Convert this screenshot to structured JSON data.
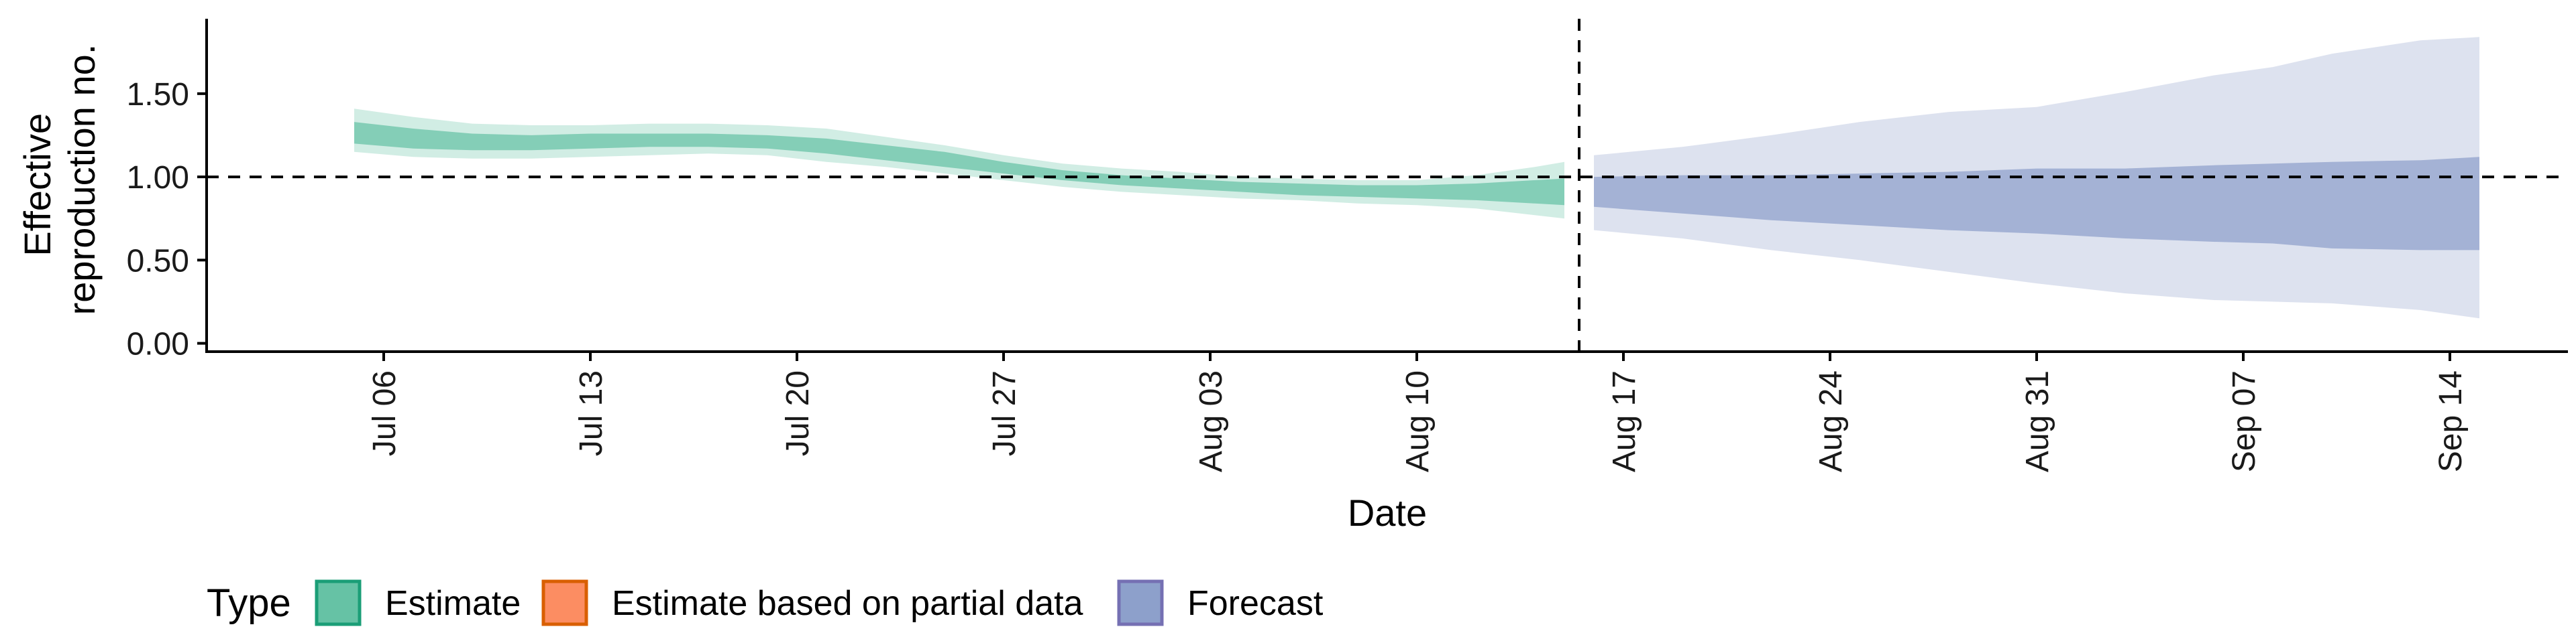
{
  "chart_data": {
    "type": "area",
    "xlabel": "Date",
    "ylabel_lines": [
      "Effective",
      "reproduction no."
    ],
    "ylim": [
      -0.05,
      1.95
    ],
    "xlim": [
      "2020-06-30",
      "2020-09-18"
    ],
    "y_ticks": [
      0.0,
      0.5,
      1.0,
      1.5
    ],
    "y_tick_labels": [
      "0.00",
      "0.50",
      "1.00",
      "1.50"
    ],
    "x_ticks": [
      "2020-07-06",
      "2020-07-13",
      "2020-07-20",
      "2020-07-27",
      "2020-08-03",
      "2020-08-10",
      "2020-08-17",
      "2020-08-24",
      "2020-08-31",
      "2020-09-07",
      "2020-09-14"
    ],
    "x_tick_labels": [
      "Jul 06",
      "Jul 13",
      "Jul 20",
      "Jul 27",
      "Aug 03",
      "Aug 10",
      "Aug 17",
      "Aug 24",
      "Aug 31",
      "Sep 07",
      "Sep 14"
    ],
    "reference_hline": 1.0,
    "reference_vline": "2020-08-15T12:00",
    "grid": false,
    "legend": {
      "title": "Type",
      "position": "bottom-left",
      "entries": [
        {
          "label": "Estimate",
          "fill": "#66c2a5",
          "stroke": "#1b9e77"
        },
        {
          "label": "Estimate based on partial data",
          "fill": "#fc8d62",
          "stroke": "#d95f02"
        },
        {
          "label": "Forecast",
          "fill": "#8da0cb",
          "stroke": "#7570b3"
        }
      ]
    },
    "series": [
      {
        "name": "Estimate",
        "color": "#66c2a5",
        "points": [
          {
            "date": "2020-07-05",
            "outer_lo": 1.15,
            "outer_hi": 1.41,
            "inner_lo": 1.2,
            "inner_hi": 1.33
          },
          {
            "date": "2020-07-07",
            "outer_lo": 1.12,
            "outer_hi": 1.36,
            "inner_lo": 1.17,
            "inner_hi": 1.29
          },
          {
            "date": "2020-07-09",
            "outer_lo": 1.11,
            "outer_hi": 1.32,
            "inner_lo": 1.16,
            "inner_hi": 1.26
          },
          {
            "date": "2020-07-11",
            "outer_lo": 1.11,
            "outer_hi": 1.31,
            "inner_lo": 1.16,
            "inner_hi": 1.25
          },
          {
            "date": "2020-07-13",
            "outer_lo": 1.12,
            "outer_hi": 1.31,
            "inner_lo": 1.17,
            "inner_hi": 1.26
          },
          {
            "date": "2020-07-15",
            "outer_lo": 1.13,
            "outer_hi": 1.32,
            "inner_lo": 1.18,
            "inner_hi": 1.26
          },
          {
            "date": "2020-07-17",
            "outer_lo": 1.14,
            "outer_hi": 1.32,
            "inner_lo": 1.18,
            "inner_hi": 1.26
          },
          {
            "date": "2020-07-19",
            "outer_lo": 1.13,
            "outer_hi": 1.31,
            "inner_lo": 1.17,
            "inner_hi": 1.25
          },
          {
            "date": "2020-07-21",
            "outer_lo": 1.09,
            "outer_hi": 1.29,
            "inner_lo": 1.14,
            "inner_hi": 1.23
          },
          {
            "date": "2020-07-23",
            "outer_lo": 1.06,
            "outer_hi": 1.24,
            "inner_lo": 1.1,
            "inner_hi": 1.19
          },
          {
            "date": "2020-07-25",
            "outer_lo": 1.02,
            "outer_hi": 1.19,
            "inner_lo": 1.06,
            "inner_hi": 1.15
          },
          {
            "date": "2020-07-27",
            "outer_lo": 0.98,
            "outer_hi": 1.13,
            "inner_lo": 1.02,
            "inner_hi": 1.09
          },
          {
            "date": "2020-07-29",
            "outer_lo": 0.94,
            "outer_hi": 1.08,
            "inner_lo": 0.98,
            "inner_hi": 1.04
          },
          {
            "date": "2020-07-31",
            "outer_lo": 0.91,
            "outer_hi": 1.05,
            "inner_lo": 0.95,
            "inner_hi": 1.01
          },
          {
            "date": "2020-08-02",
            "outer_lo": 0.89,
            "outer_hi": 1.03,
            "inner_lo": 0.93,
            "inner_hi": 0.99
          },
          {
            "date": "2020-08-04",
            "outer_lo": 0.87,
            "outer_hi": 1.0,
            "inner_lo": 0.91,
            "inner_hi": 0.97
          },
          {
            "date": "2020-08-06",
            "outer_lo": 0.86,
            "outer_hi": 0.99,
            "inner_lo": 0.89,
            "inner_hi": 0.96
          },
          {
            "date": "2020-08-08",
            "outer_lo": 0.84,
            "outer_hi": 0.98,
            "inner_lo": 0.88,
            "inner_hi": 0.95
          },
          {
            "date": "2020-08-10",
            "outer_lo": 0.83,
            "outer_hi": 0.98,
            "inner_lo": 0.87,
            "inner_hi": 0.95
          },
          {
            "date": "2020-08-12",
            "outer_lo": 0.81,
            "outer_hi": 1.01,
            "inner_lo": 0.86,
            "inner_hi": 0.96
          },
          {
            "date": "2020-08-14",
            "outer_lo": 0.77,
            "outer_hi": 1.06,
            "inner_lo": 0.84,
            "inner_hi": 0.98
          },
          {
            "date": "2020-08-15",
            "outer_lo": 0.75,
            "outer_hi": 1.09,
            "inner_lo": 0.83,
            "inner_hi": 0.99
          }
        ]
      },
      {
        "name": "Forecast",
        "color": "#8da0cb",
        "points": [
          {
            "date": "2020-08-16",
            "outer_lo": 0.68,
            "outer_hi": 1.13,
            "inner_lo": 0.82,
            "inner_hi": 1.0
          },
          {
            "date": "2020-08-19",
            "outer_lo": 0.63,
            "outer_hi": 1.18,
            "inner_lo": 0.78,
            "inner_hi": 1.01
          },
          {
            "date": "2020-08-22",
            "outer_lo": 0.56,
            "outer_hi": 1.25,
            "inner_lo": 0.74,
            "inner_hi": 1.01
          },
          {
            "date": "2020-08-25",
            "outer_lo": 0.5,
            "outer_hi": 1.33,
            "inner_lo": 0.71,
            "inner_hi": 1.02
          },
          {
            "date": "2020-08-28",
            "outer_lo": 0.43,
            "outer_hi": 1.39,
            "inner_lo": 0.68,
            "inner_hi": 1.03
          },
          {
            "date": "2020-08-31",
            "outer_lo": 0.36,
            "outer_hi": 1.42,
            "inner_lo": 0.66,
            "inner_hi": 1.05
          },
          {
            "date": "2020-09-03",
            "outer_lo": 0.3,
            "outer_hi": 1.51,
            "inner_lo": 0.63,
            "inner_hi": 1.05
          },
          {
            "date": "2020-09-06",
            "outer_lo": 0.26,
            "outer_hi": 1.61,
            "inner_lo": 0.61,
            "inner_hi": 1.07
          },
          {
            "date": "2020-09-08",
            "outer_lo": 0.25,
            "outer_hi": 1.66,
            "inner_lo": 0.6,
            "inner_hi": 1.08
          },
          {
            "date": "2020-09-10",
            "outer_lo": 0.24,
            "outer_hi": 1.74,
            "inner_lo": 0.57,
            "inner_hi": 1.09
          },
          {
            "date": "2020-09-13",
            "outer_lo": 0.2,
            "outer_hi": 1.82,
            "inner_lo": 0.56,
            "inner_hi": 1.1
          },
          {
            "date": "2020-09-15",
            "outer_lo": 0.15,
            "outer_hi": 1.84,
            "inner_lo": 0.56,
            "inner_hi": 1.12
          }
        ]
      }
    ]
  }
}
